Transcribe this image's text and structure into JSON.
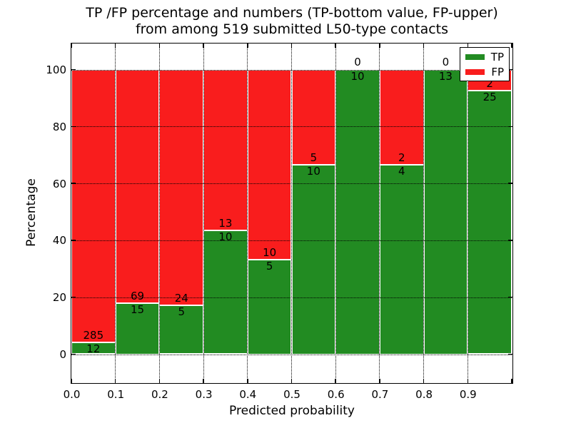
{
  "figure": {
    "title_line1": "TP /FP percentage and numbers (TP-bottom value, FP-upper)",
    "title_line2": "from among 519 submitted L50-type contacts",
    "xlabel": "Predicted probability",
    "ylabel": "Percentage"
  },
  "legend": {
    "position": "upper right",
    "items": [
      {
        "label": "TP",
        "color": "#228b22"
      },
      {
        "label": "FP",
        "color": "#f91d1d"
      }
    ]
  },
  "chart_data": {
    "type": "bar",
    "stacked": true,
    "orientation": "vertical",
    "title": "TP /FP percentage and numbers (TP-bottom value, FP-upper) from among 519 submitted L50-type contacts",
    "xlabel": "Predicted probability",
    "ylabel": "Percentage",
    "total_contacts": 519,
    "x_bin_starts": [
      0.0,
      0.1,
      0.2,
      0.3,
      0.4,
      0.5,
      0.6,
      0.7,
      0.8,
      0.9
    ],
    "bin_width": 0.1,
    "x_tick_labels": [
      "0.0",
      "0.1",
      "0.2",
      "0.3",
      "0.4",
      "0.5",
      "0.6",
      "0.7",
      "0.8",
      "0.9"
    ],
    "y_tick_values": [
      0,
      20,
      40,
      60,
      80,
      100
    ],
    "y_tick_labels": [
      "0",
      "20",
      "40",
      "60",
      "80",
      "100"
    ],
    "xlim": [
      0.0,
      1.0
    ],
    "ylim": [
      -10,
      110
    ],
    "grid": true,
    "grid_style": "dotted",
    "bar_edge_color": "#ffffff",
    "series": [
      {
        "name": "TP",
        "color": "#228b22",
        "counts": [
          12,
          15,
          5,
          10,
          5,
          10,
          10,
          4,
          13,
          25
        ]
      },
      {
        "name": "FP",
        "color": "#f91d1d",
        "counts": [
          285,
          69,
          24,
          13,
          10,
          5,
          0,
          2,
          0,
          2
        ]
      }
    ],
    "tp_percent": [
      4.0,
      17.9,
      17.2,
      43.5,
      33.3,
      66.7,
      100.0,
      66.7,
      100.0,
      92.6
    ],
    "label_rule": "TP count printed just below TP/FP boundary, FP count printed just above TP/FP boundary"
  }
}
